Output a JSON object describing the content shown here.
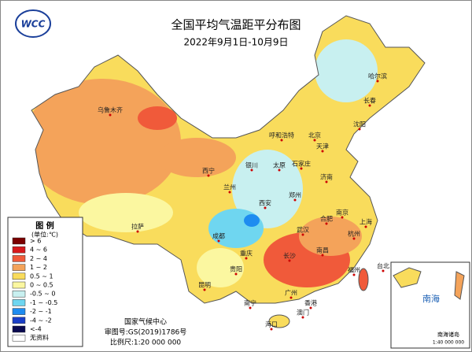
{
  "logo": "WCC",
  "header": {
    "title": "全国平均气温距平分布图",
    "subtitle": "2022年9月1日-10月9日"
  },
  "legend": {
    "title": "图 例",
    "unit": "(单位:℃)",
    "items": [
      {
        "label": "> 6",
        "color": "#7a0000"
      },
      {
        "label": "4 ~ 6",
        "color": "#d7191c"
      },
      {
        "label": "2 ~ 4",
        "color": "#f05a3a"
      },
      {
        "label": "1 ~ 2",
        "color": "#f4a35a"
      },
      {
        "label": "0.5 ~ 1",
        "color": "#f9dc5c"
      },
      {
        "label": "0 ~ 0.5",
        "color": "#fbf7a0"
      },
      {
        "label": "-0.5 ~ 0",
        "color": "#c8f0f0"
      },
      {
        "label": "-1 ~ -0.5",
        "color": "#6fd6f0"
      },
      {
        "label": "-2 ~ -1",
        "color": "#1e8cf0"
      },
      {
        "label": "-4 ~ -2",
        "color": "#1a3fc8"
      },
      {
        "label": "<-4",
        "color": "#0a0a50"
      },
      {
        "label": "无资料",
        "color": "#ffffff"
      }
    ]
  },
  "cities": [
    "哈尔滨",
    "长春",
    "沈阳",
    "北京",
    "天津",
    "呼和浩特",
    "石家庄",
    "太原",
    "济南",
    "银川",
    "西宁",
    "兰州",
    "郑州",
    "西安",
    "南京",
    "合肥",
    "上海",
    "杭州",
    "武汉",
    "成都",
    "重庆",
    "拉萨",
    "乌鲁木齐",
    "贵阳",
    "长沙",
    "南昌",
    "福州",
    "台北",
    "昆明",
    "南宁",
    "广州",
    "香港",
    "澳门",
    "海口"
  ],
  "footer": {
    "agency": "国家气候中心",
    "approval": "审图号:GS(2019)1786号",
    "scale": "比例尺:1:20 000 000"
  },
  "inset": {
    "sea": "南海",
    "islands": "南海诸岛",
    "scale": "1:40 000 000"
  }
}
